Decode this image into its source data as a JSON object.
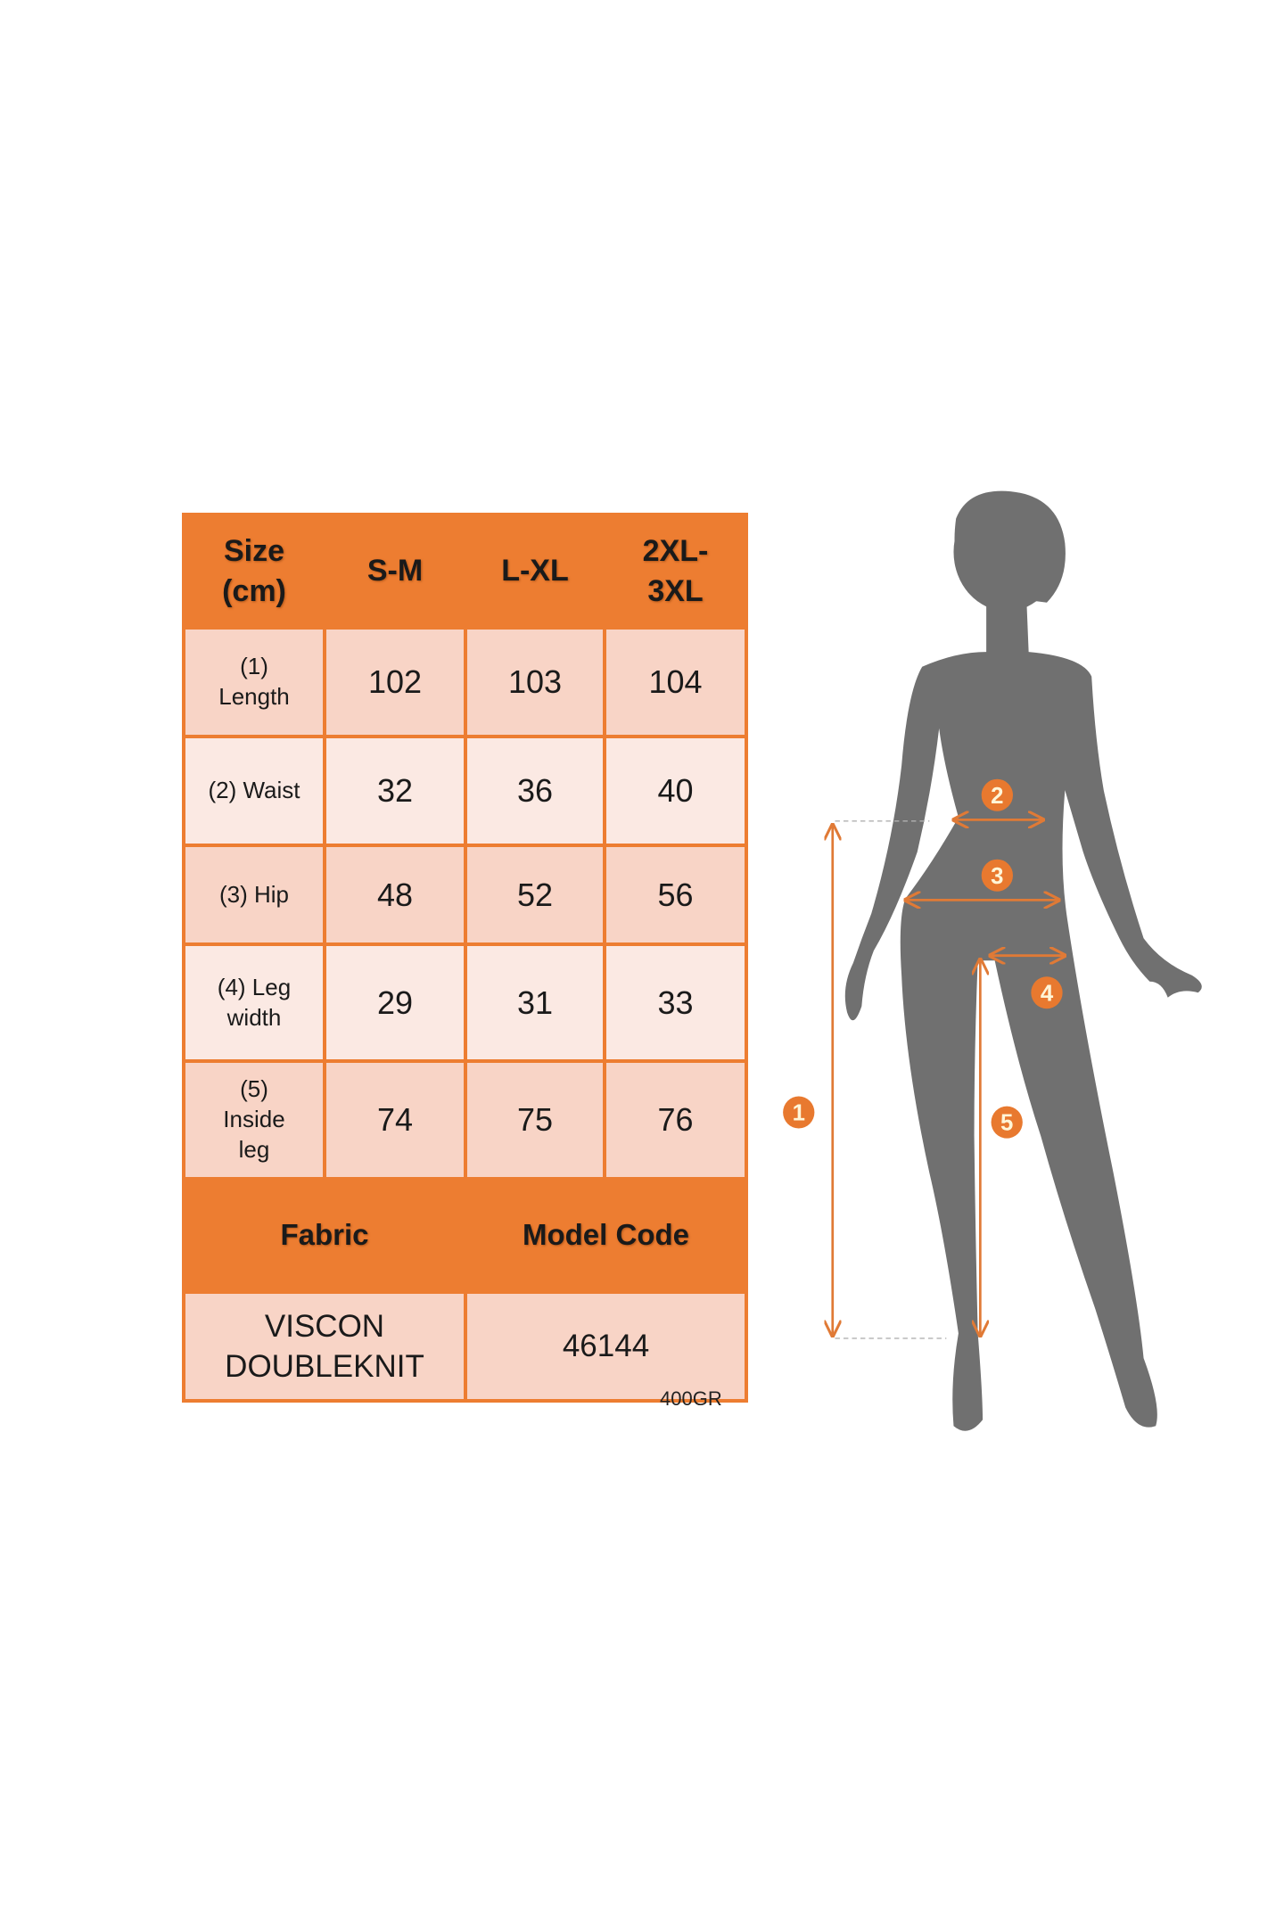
{
  "table": {
    "header": [
      "Size\n(cm)",
      "S-M",
      "L-XL",
      "2XL-\n3XL"
    ],
    "rows": [
      {
        "label": "(1)\nLength",
        "values": [
          "102",
          "103",
          "104"
        ]
      },
      {
        "label": "(2) Waist",
        "values": [
          "32",
          "36",
          "40"
        ]
      },
      {
        "label": "(3) Hip",
        "values": [
          "48",
          "52",
          "56"
        ]
      },
      {
        "label": "(4) Leg\nwidth",
        "values": [
          "29",
          "31",
          "33"
        ]
      },
      {
        "label": "(5)\nInside\nleg",
        "values": [
          "74",
          "75",
          "76"
        ]
      }
    ],
    "footer_headers": [
      "Fabric",
      "Model Code"
    ],
    "footer_values": [
      "VISCON\nDOUBLEKNIT",
      "46144"
    ]
  },
  "note": "400GR",
  "figure": {
    "markers": [
      "1",
      "2",
      "3",
      "4",
      "5"
    ]
  },
  "colors": {
    "accent": "#ed7d31",
    "cell_dark": "#f8d4c6",
    "cell_light": "#fbe9e3",
    "silhouette": "#707070"
  }
}
